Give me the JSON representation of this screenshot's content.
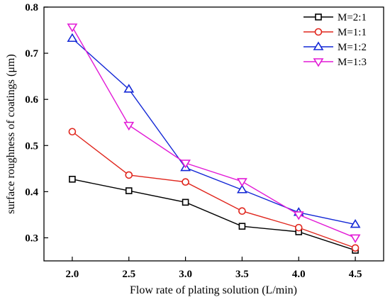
{
  "chart_data": {
    "type": "line",
    "title": "",
    "xlabel": "Flow rate of plating solution (L/min)",
    "ylabel": "surface roughness of coatings (μm)",
    "x": [
      2.0,
      2.5,
      3.0,
      3.5,
      4.0,
      4.5
    ],
    "xlim": [
      1.75,
      4.75
    ],
    "ylim": [
      0.25,
      0.8
    ],
    "xticks": [
      "2.0",
      "2.5",
      "3.0",
      "3.5",
      "4.0",
      "4.5"
    ],
    "yticks": [
      "0.3",
      "0.4",
      "0.5",
      "0.6",
      "0.7",
      "0.8"
    ],
    "grid": false,
    "legend_position": "top-right",
    "series": [
      {
        "name": "M=2:1",
        "marker": "square",
        "color": "#000000",
        "values": [
          0.427,
          0.402,
          0.377,
          0.325,
          0.313,
          0.273
        ]
      },
      {
        "name": "M=1:1",
        "marker": "circle",
        "color": "#e0261d",
        "values": [
          0.53,
          0.436,
          0.421,
          0.358,
          0.322,
          0.278
        ]
      },
      {
        "name": "M=1:2",
        "marker": "triangle-up",
        "color": "#1428d6",
        "values": [
          0.732,
          0.622,
          0.452,
          0.404,
          0.355,
          0.329
        ]
      },
      {
        "name": "M=1:3",
        "marker": "triangle-down",
        "color": "#e21ad6",
        "values": [
          0.757,
          0.544,
          0.462,
          0.422,
          0.35,
          0.3
        ]
      }
    ]
  }
}
